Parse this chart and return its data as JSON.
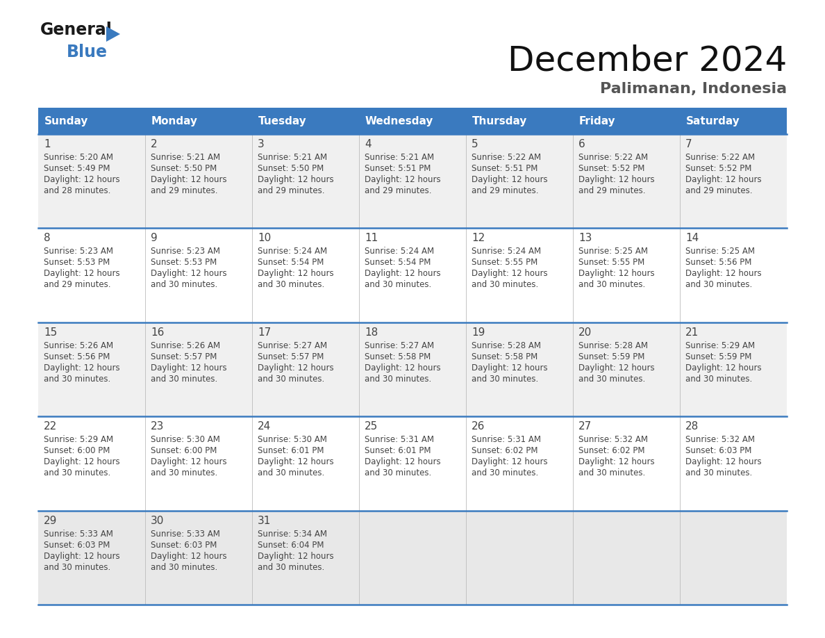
{
  "title": "December 2024",
  "subtitle": "Palimanan, Indonesia",
  "header_bg": "#3a7abf",
  "header_text_color": "#ffffff",
  "days_of_week": [
    "Sunday",
    "Monday",
    "Tuesday",
    "Wednesday",
    "Thursday",
    "Friday",
    "Saturday"
  ],
  "cell_bg_row0": "#f0f0f0",
  "cell_bg_row1": "#ffffff",
  "cell_bg_row2": "#f0f0f0",
  "cell_bg_row3": "#ffffff",
  "cell_bg_row4": "#e8e8e8",
  "divider_color": "#3a7abf",
  "text_color": "#444444",
  "calendar": [
    [
      {
        "day": 1,
        "sunrise": "5:20 AM",
        "sunset": "5:49 PM",
        "daylight_min": "28"
      },
      {
        "day": 2,
        "sunrise": "5:21 AM",
        "sunset": "5:50 PM",
        "daylight_min": "29"
      },
      {
        "day": 3,
        "sunrise": "5:21 AM",
        "sunset": "5:50 PM",
        "daylight_min": "29"
      },
      {
        "day": 4,
        "sunrise": "5:21 AM",
        "sunset": "5:51 PM",
        "daylight_min": "29"
      },
      {
        "day": 5,
        "sunrise": "5:22 AM",
        "sunset": "5:51 PM",
        "daylight_min": "29"
      },
      {
        "day": 6,
        "sunrise": "5:22 AM",
        "sunset": "5:52 PM",
        "daylight_min": "29"
      },
      {
        "day": 7,
        "sunrise": "5:22 AM",
        "sunset": "5:52 PM",
        "daylight_min": "29"
      }
    ],
    [
      {
        "day": 8,
        "sunrise": "5:23 AM",
        "sunset": "5:53 PM",
        "daylight_min": "29"
      },
      {
        "day": 9,
        "sunrise": "5:23 AM",
        "sunset": "5:53 PM",
        "daylight_min": "30"
      },
      {
        "day": 10,
        "sunrise": "5:24 AM",
        "sunset": "5:54 PM",
        "daylight_min": "30"
      },
      {
        "day": 11,
        "sunrise": "5:24 AM",
        "sunset": "5:54 PM",
        "daylight_min": "30"
      },
      {
        "day": 12,
        "sunrise": "5:24 AM",
        "sunset": "5:55 PM",
        "daylight_min": "30"
      },
      {
        "day": 13,
        "sunrise": "5:25 AM",
        "sunset": "5:55 PM",
        "daylight_min": "30"
      },
      {
        "day": 14,
        "sunrise": "5:25 AM",
        "sunset": "5:56 PM",
        "daylight_min": "30"
      }
    ],
    [
      {
        "day": 15,
        "sunrise": "5:26 AM",
        "sunset": "5:56 PM",
        "daylight_min": "30"
      },
      {
        "day": 16,
        "sunrise": "5:26 AM",
        "sunset": "5:57 PM",
        "daylight_min": "30"
      },
      {
        "day": 17,
        "sunrise": "5:27 AM",
        "sunset": "5:57 PM",
        "daylight_min": "30"
      },
      {
        "day": 18,
        "sunrise": "5:27 AM",
        "sunset": "5:58 PM",
        "daylight_min": "30"
      },
      {
        "day": 19,
        "sunrise": "5:28 AM",
        "sunset": "5:58 PM",
        "daylight_min": "30"
      },
      {
        "day": 20,
        "sunrise": "5:28 AM",
        "sunset": "5:59 PM",
        "daylight_min": "30"
      },
      {
        "day": 21,
        "sunrise": "5:29 AM",
        "sunset": "5:59 PM",
        "daylight_min": "30"
      }
    ],
    [
      {
        "day": 22,
        "sunrise": "5:29 AM",
        "sunset": "6:00 PM",
        "daylight_min": "30"
      },
      {
        "day": 23,
        "sunrise": "5:30 AM",
        "sunset": "6:00 PM",
        "daylight_min": "30"
      },
      {
        "day": 24,
        "sunrise": "5:30 AM",
        "sunset": "6:01 PM",
        "daylight_min": "30"
      },
      {
        "day": 25,
        "sunrise": "5:31 AM",
        "sunset": "6:01 PM",
        "daylight_min": "30"
      },
      {
        "day": 26,
        "sunrise": "5:31 AM",
        "sunset": "6:02 PM",
        "daylight_min": "30"
      },
      {
        "day": 27,
        "sunrise": "5:32 AM",
        "sunset": "6:02 PM",
        "daylight_min": "30"
      },
      {
        "day": 28,
        "sunrise": "5:32 AM",
        "sunset": "6:03 PM",
        "daylight_min": "30"
      }
    ],
    [
      {
        "day": 29,
        "sunrise": "5:33 AM",
        "sunset": "6:03 PM",
        "daylight_min": "30"
      },
      {
        "day": 30,
        "sunrise": "5:33 AM",
        "sunset": "6:03 PM",
        "daylight_min": "30"
      },
      {
        "day": 31,
        "sunrise": "5:34 AM",
        "sunset": "6:04 PM",
        "daylight_min": "30"
      },
      null,
      null,
      null,
      null
    ]
  ],
  "logo_text1": "General",
  "logo_text2": "Blue",
  "logo_text1_color": "#1a1a1a",
  "logo_text2_color": "#3a7abf",
  "logo_arrow_color": "#3a7abf",
  "title_fontsize": 36,
  "subtitle_fontsize": 16,
  "header_fontsize": 11,
  "day_num_fontsize": 11,
  "cell_fontsize": 8.5
}
